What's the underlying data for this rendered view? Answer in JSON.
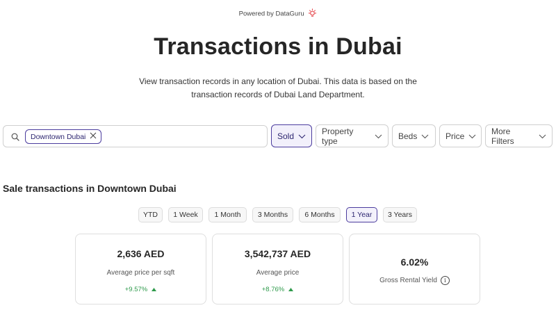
{
  "header": {
    "powered_by": "Powered by DataGuru",
    "title": "Transactions in Dubai",
    "subtitle": "View transaction records in any location of Dubai. This data is based on the transaction records of Dubai Land Department."
  },
  "search": {
    "chip_label": "Downtown Dubai"
  },
  "filters": {
    "sold": "Sold",
    "property_type": "Property type",
    "beds": "Beds",
    "price": "Price",
    "more_filters": "More Filters"
  },
  "section": {
    "title": "Sale transactions in Downtown Dubai"
  },
  "periods": [
    "YTD",
    "1 Week",
    "1 Month",
    "3 Months",
    "6 Months",
    "1 Year",
    "3 Years"
  ],
  "selected_period": "1 Year",
  "cards": [
    {
      "value": "2,636 AED",
      "label": "Average price per sqft",
      "change": "+9.57%"
    },
    {
      "value": "3,542,737 AED",
      "label": "Average price",
      "change": "+8.76%"
    },
    {
      "value": "6.02%",
      "label": "Gross Rental Yield"
    }
  ],
  "colors": {
    "accent": "#4b3c9e",
    "positive": "#2e9a4b",
    "brand_icon": "#e5484d"
  }
}
